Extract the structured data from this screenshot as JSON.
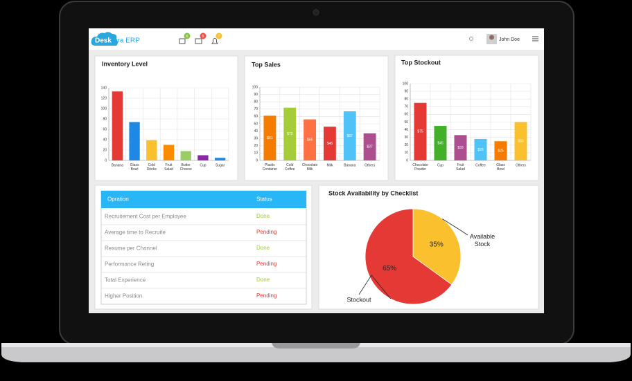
{
  "header": {
    "logo_a": "Desk",
    "logo_b": "era ERP",
    "badges": [
      "6",
      "5",
      "7"
    ],
    "user": "John Doe"
  },
  "chart_data": [
    {
      "type": "bar",
      "title": "Inventory Level",
      "categories": [
        "Banana",
        "Glass Bowl",
        "Cold Drinks",
        "Fruit Salad",
        "Butter Cheese",
        "Cup",
        "Sugar"
      ],
      "values": [
        133,
        74,
        39,
        30,
        18,
        10,
        5
      ],
      "colors": [
        "#e53935",
        "#1e88e5",
        "#fbc02d",
        "#fb8c00",
        "#9ccc65",
        "#8e24aa",
        "#1e88e5"
      ],
      "ylim": [
        0,
        140
      ],
      "yticks": [
        0,
        20,
        40,
        60,
        80,
        100,
        120,
        140
      ],
      "grid": true
    },
    {
      "type": "bar",
      "title": "Top Sales",
      "categories": [
        "Plastic Container",
        "Cold Coffee",
        "Chocolate Milk",
        "Milk",
        "Banana",
        "Others"
      ],
      "values": [
        61,
        72,
        56,
        46,
        67,
        37
      ],
      "value_labels": [
        "$61",
        "$72",
        "$56",
        "$46",
        "$67",
        "$37"
      ],
      "colors": [
        "#f57c00",
        "#a5cd39",
        "#ff7043",
        "#e53935",
        "#4fc3f7",
        "#ad4e8e"
      ],
      "ylim": [
        0,
        100
      ],
      "yticks": [
        0,
        10,
        20,
        30,
        40,
        50,
        60,
        70,
        80,
        90,
        100
      ],
      "grid": true
    },
    {
      "type": "bar",
      "title": "Top Stockout",
      "categories": [
        "Chocolate Powder",
        "Cup",
        "Fruit Salad",
        "Coffee",
        "Glass Bowl",
        "Others"
      ],
      "values": [
        75,
        45,
        33,
        28,
        25,
        50
      ],
      "value_labels": [
        "$75",
        "$45",
        "$33",
        "$28",
        "$25",
        "$50"
      ],
      "colors": [
        "#e53935",
        "#43b02a",
        "#ad4e8e",
        "#4fc3f7",
        "#f57c00",
        "#fbc02d"
      ],
      "ylim": [
        0,
        100
      ],
      "yticks": [
        0,
        10,
        20,
        30,
        40,
        50,
        60,
        70,
        80,
        90,
        100
      ],
      "grid": true
    },
    {
      "type": "pie",
      "title": "Stock Availability by Checklist",
      "labels": [
        "Available Stock",
        "Stockout"
      ],
      "values": [
        35,
        65
      ],
      "value_labels": [
        "35%",
        "65%"
      ],
      "colors": [
        "#fbc02d",
        "#e53935"
      ]
    }
  ],
  "table": {
    "columns": [
      "Opration",
      "Status"
    ],
    "rows": [
      {
        "operation": "Recruitement Cost per Employee",
        "status": "Done",
        "color": "#9ccc3a"
      },
      {
        "operation": "Average time to Recruite",
        "status": "Pending",
        "color": "#e53935"
      },
      {
        "operation": "Resume per Channel",
        "status": "Done",
        "color": "#9ccc3a"
      },
      {
        "operation": "Performance Reting",
        "status": "Pending",
        "color": "#e53935"
      },
      {
        "operation": "Total Experience",
        "status": "Done",
        "color": "#9ccc3a"
      },
      {
        "operation": "Higher Position",
        "status": "Pending",
        "color": "#e53935"
      }
    ]
  }
}
